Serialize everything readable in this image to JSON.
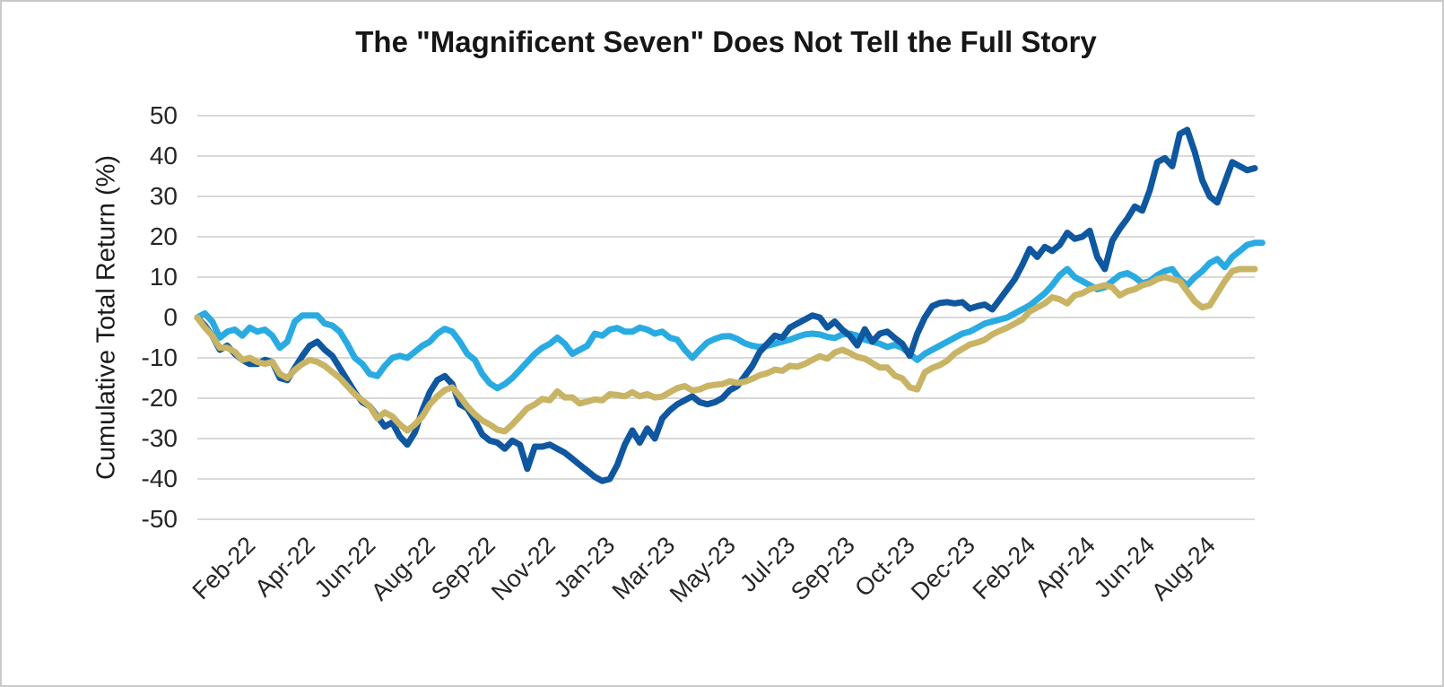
{
  "chart": {
    "title": "The \"Magnificent Seven\" Does Not Tell the Full Story",
    "y_axis": {
      "label": "Cumulative Total Return (%)",
      "ticks": [
        50,
        40,
        30,
        20,
        10,
        0,
        -10,
        -20,
        -30,
        -40,
        -50
      ]
    },
    "x_axis": {
      "labels": [
        "Feb-22",
        "Apr-22",
        "Jun-22",
        "Aug-22",
        "Sep-22",
        "Nov-22",
        "Jan-23",
        "Mar-23",
        "May-23",
        "Jul-23",
        "Sep-23",
        "Oct-23",
        "Dec-23",
        "Feb-24",
        "Apr-24",
        "Jun-24",
        "Aug-24"
      ],
      "tick_indices": [
        7,
        15,
        23,
        31,
        39,
        47,
        55,
        63,
        71,
        79,
        87,
        95,
        103,
        111,
        119,
        127,
        135
      ]
    },
    "colors": {
      "gridline": "#d9d9d9",
      "frame_border": "#c9c9c9",
      "background": "#ffffff",
      "title_text": "#161616",
      "tick_text": "#262626"
    }
  },
  "chart_data": {
    "type": "line",
    "title": "The \"Magnificent Seven\" Does Not Tell the Full Story",
    "xlabel": "",
    "ylabel": "Cumulative Total Return (%)",
    "ylim": [
      -50,
      50
    ],
    "grid": "horizontal",
    "legend": "none",
    "x_tick_labels": [
      "Feb-22",
      "Apr-22",
      "Jun-22",
      "Aug-22",
      "Sep-22",
      "Nov-22",
      "Jan-23",
      "Mar-23",
      "May-23",
      "Jul-23",
      "Sep-23",
      "Oct-23",
      "Dec-23",
      "Feb-24",
      "Apr-24",
      "Jun-24",
      "Aug-24"
    ],
    "x_note": "weekly observations, index 0-141 (Dec-2021 = 0%); x tick label i sits at index 7+8*i",
    "series": [
      {
        "name": "light-blue-line",
        "color": "#29abe2",
        "values": [
          0,
          1,
          -1,
          -5,
          -3.5,
          -3,
          -4.5,
          -2.5,
          -3.5,
          -3,
          -4.5,
          -7.5,
          -6,
          -1,
          0.5,
          0.5,
          0.5,
          -1.5,
          -2,
          -3.5,
          -6.5,
          -10,
          -11.5,
          -14,
          -14.5,
          -12,
          -10,
          -9.5,
          -10,
          -8.5,
          -7,
          -6,
          -4,
          -2.8,
          -3.5,
          -6,
          -9,
          -10.5,
          -14,
          -16.3,
          -17.5,
          -16.5,
          -15,
          -13,
          -11,
          -9,
          -7.5,
          -6.5,
          -5,
          -6.5,
          -9,
          -8,
          -7,
          -4,
          -4.5,
          -3,
          -2.6,
          -3.5,
          -3.5,
          -2.5,
          -3,
          -4,
          -3.5,
          -5,
          -5.5,
          -8,
          -10,
          -8,
          -6.2,
          -5.3,
          -4.7,
          -4.6,
          -5.3,
          -6.4,
          -7,
          -7.3,
          -7,
          -6.5,
          -6,
          -5.5,
          -4.8,
          -4.2,
          -4,
          -4.2,
          -4.8,
          -5.1,
          -4.2,
          -4,
          -4.5,
          -5.5,
          -6,
          -6.5,
          -7.3,
          -6.8,
          -7.5,
          -9,
          -10.5,
          -9,
          -8,
          -7,
          -6,
          -5,
          -4,
          -3.5,
          -2.5,
          -1.5,
          -1,
          -0.5,
          0,
          1,
          2,
          3,
          4.5,
          6,
          8,
          10.5,
          12,
          10,
          9,
          8,
          7,
          7.5,
          9,
          10.5,
          11,
          10,
          8.5,
          9,
          10.5,
          11.5,
          12,
          9.5,
          8,
          10,
          11.5,
          13.5,
          14.5,
          12.5,
          15,
          16.5,
          18,
          18.5,
          18.5
        ]
      },
      {
        "name": "dark-blue-line",
        "color": "#0f579f",
        "values": [
          0,
          -2,
          -4.5,
          -8,
          -7,
          -9,
          -10.5,
          -11.5,
          -11.5,
          -10.5,
          -11,
          -15,
          -15.5,
          -12.5,
          -9.5,
          -7,
          -6,
          -8,
          -9.5,
          -12.5,
          -15.5,
          -18.5,
          -21,
          -22,
          -24.5,
          -27,
          -26,
          -29.5,
          -31.5,
          -28.5,
          -23,
          -18.5,
          -15.5,
          -14.5,
          -16.5,
          -21.5,
          -22.5,
          -25.5,
          -29,
          -30.5,
          -31,
          -32.5,
          -30.5,
          -31.5,
          -37.5,
          -32,
          -32,
          -31.5,
          -32.5,
          -33.5,
          -35,
          -36.5,
          -38,
          -39.5,
          -40.5,
          -40,
          -36.5,
          -31.5,
          -28,
          -31,
          -27.5,
          -30,
          -25,
          -23,
          -21.5,
          -20.5,
          -19.5,
          -21,
          -21.5,
          -21,
          -20,
          -18,
          -17,
          -14.5,
          -12,
          -8.5,
          -6.5,
          -4.5,
          -5,
          -2.5,
          -1.5,
          -0.5,
          0.5,
          0,
          -2.5,
          -1,
          -3,
          -4.5,
          -6.9,
          -2.9,
          -6,
          -4,
          -3.5,
          -5.1,
          -6.5,
          -9.5,
          -4,
          0,
          2.8,
          3.6,
          3.8,
          3.5,
          3.8,
          2.2,
          2.8,
          3.2,
          2,
          4.5,
          7,
          9.5,
          13,
          17,
          15,
          17.5,
          16.5,
          18,
          21,
          19.5,
          20,
          21.5,
          15,
          12,
          19,
          22,
          24.5,
          27.5,
          26.5,
          31.5,
          38.5,
          39.5,
          37.5,
          45.5,
          46.5,
          41,
          34,
          30,
          28.5,
          33.5,
          38.5,
          37.5,
          36.5,
          37
        ]
      },
      {
        "name": "gold-line",
        "color": "#c8b464",
        "values": [
          0,
          -2.5,
          -4.5,
          -7.5,
          -7.5,
          -8.5,
          -10.5,
          -10,
          -11,
          -11.5,
          -11,
          -14,
          -15,
          -13,
          -11.5,
          -10.5,
          -11,
          -12,
          -13.5,
          -15,
          -17,
          -19,
          -20.5,
          -22,
          -25,
          -23.5,
          -24.5,
          -26.5,
          -28,
          -26.5,
          -24.5,
          -21.5,
          -19.5,
          -18,
          -17.3,
          -19.5,
          -22,
          -24,
          -25.5,
          -26.5,
          -27.8,
          -28.2,
          -26.5,
          -24.5,
          -22.5,
          -21.5,
          -20.2,
          -20.5,
          -18.3,
          -19.8,
          -19.8,
          -21.3,
          -20.8,
          -20.3,
          -20.5,
          -19,
          -19.2,
          -19.5,
          -18.5,
          -19.5,
          -19,
          -19.8,
          -19.6,
          -18.5,
          -17.5,
          -17,
          -18.1,
          -17.8,
          -17,
          -16.7,
          -16.5,
          -15.8,
          -16.2,
          -15.9,
          -15.2,
          -14.3,
          -13.8,
          -12.9,
          -13.2,
          -12,
          -12.2,
          -11.5,
          -10.5,
          -9.6,
          -10.2,
          -8.7,
          -8,
          -8.8,
          -9.8,
          -10.2,
          -11.3,
          -12.4,
          -12.4,
          -14.4,
          -15.1,
          -17.3,
          -17.8,
          -13.6,
          -12.5,
          -11.8,
          -10.7,
          -8.9,
          -7.8,
          -6.7,
          -6.2,
          -5.5,
          -4.2,
          -3.3,
          -2.5,
          -1.5,
          -0.5,
          1.5,
          2.5,
          3.5,
          5,
          4.5,
          3.5,
          5.5,
          6,
          7,
          7.5,
          8,
          7.5,
          5.5,
          6.5,
          7,
          8,
          8.5,
          9.5,
          10,
          9.5,
          9,
          6.5,
          4,
          2.5,
          3,
          6,
          9,
          11.5,
          12,
          12,
          12
        ]
      }
    ]
  }
}
